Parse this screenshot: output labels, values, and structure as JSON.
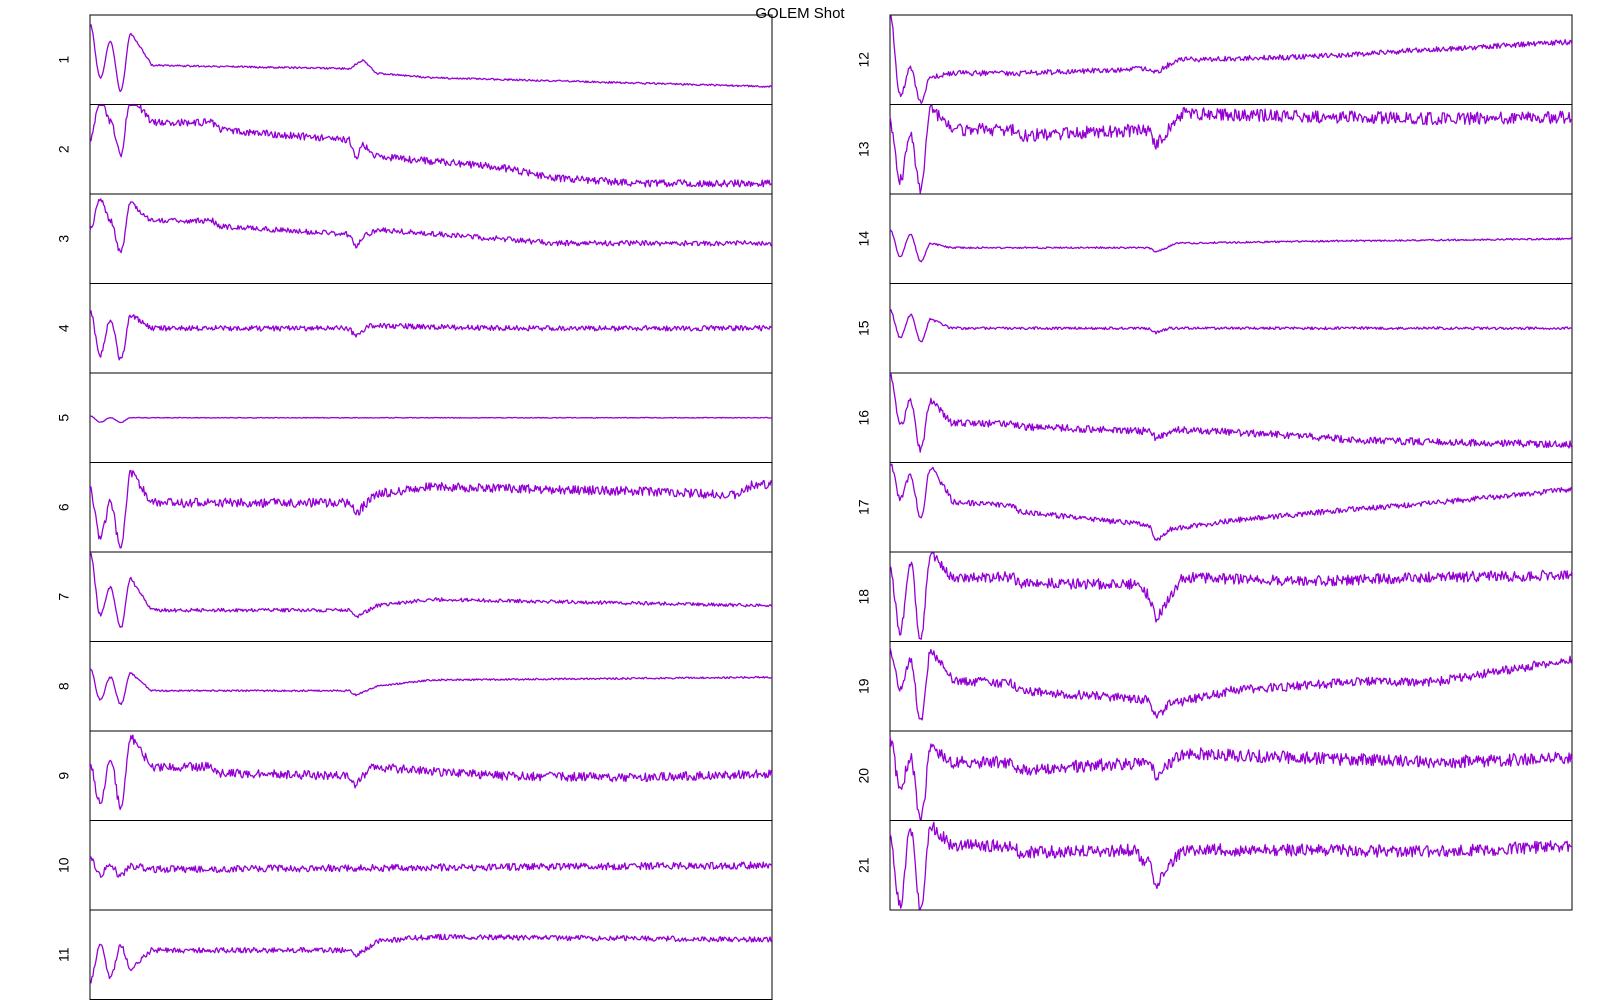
{
  "chart_data": {
    "type": "line",
    "title": "GOLEM Shot",
    "line_color": "#9400d3",
    "frame_color": "#000000",
    "background": "#ffffff",
    "grid": false,
    "legend": "none",
    "x_tick_labels": "none",
    "y_tick_labels": "none",
    "columns": [
      {
        "position": "left",
        "panels": [
          {
            "label": "1",
            "baseline": 0.55,
            "initial": [
              0.1,
              0.7,
              0.3,
              0.85,
              0.2
            ],
            "trend": [
              [
                0.0,
                0.0
              ],
              [
                0.38,
                0.05
              ],
              [
                0.4,
                -0.05
              ],
              [
                0.42,
                0.1
              ],
              [
                0.5,
                0.15
              ],
              [
                1.0,
                0.25
              ]
            ],
            "noise": 0.01
          },
          {
            "label": "2",
            "baseline": 0.2,
            "initial": [
              0.4,
              -0.05,
              0.2,
              0.55,
              -0.1
            ],
            "trend": [
              [
                0.0,
                0.0
              ],
              [
                0.18,
                0.0
              ],
              [
                0.19,
                0.08
              ],
              [
                0.38,
                0.2
              ],
              [
                0.39,
                0.4
              ],
              [
                0.4,
                0.25
              ],
              [
                0.42,
                0.38
              ],
              [
                0.6,
                0.5
              ],
              [
                0.68,
                0.62
              ],
              [
                0.8,
                0.68
              ],
              [
                1.0,
                0.68
              ]
            ],
            "noise": 0.04
          },
          {
            "label": "3",
            "baseline": 0.3,
            "initial": [
              0.4,
              0.05,
              0.3,
              0.65,
              0.1
            ],
            "trend": [
              [
                0.0,
                0.0
              ],
              [
                0.18,
                0.0
              ],
              [
                0.19,
                0.06
              ],
              [
                0.38,
                0.15
              ],
              [
                0.39,
                0.28
              ],
              [
                0.4,
                0.18
              ],
              [
                0.42,
                0.1
              ],
              [
                0.6,
                0.2
              ],
              [
                0.68,
                0.25
              ],
              [
                1.0,
                0.25
              ]
            ],
            "noise": 0.03
          },
          {
            "label": "4",
            "baseline": 0.5,
            "initial": [
              0.3,
              0.8,
              0.4,
              0.85,
              0.35
            ],
            "trend": [
              [
                0.0,
                0.0
              ],
              [
                0.38,
                0.0
              ],
              [
                0.39,
                0.1
              ],
              [
                0.41,
                -0.03
              ],
              [
                0.6,
                0.0
              ],
              [
                1.0,
                0.0
              ]
            ],
            "noise": 0.03
          },
          {
            "label": "5",
            "baseline": 0.5,
            "initial": [
              0.48,
              0.55,
              0.5,
              0.55,
              0.5
            ],
            "trend": [
              [
                0.0,
                0.0
              ],
              [
                1.0,
                0.0
              ]
            ],
            "noise": 0.004
          },
          {
            "label": "6",
            "baseline": 0.45,
            "initial": [
              0.3,
              0.85,
              0.45,
              0.95,
              0.1
            ],
            "trend": [
              [
                0.0,
                0.0
              ],
              [
                0.38,
                0.0
              ],
              [
                0.39,
                0.12
              ],
              [
                0.42,
                -0.1
              ],
              [
                0.5,
                -0.18
              ],
              [
                0.85,
                -0.12
              ],
              [
                0.95,
                -0.08
              ],
              [
                0.97,
                -0.2
              ],
              [
                1.0,
                -0.2
              ]
            ],
            "noise": 0.05
          },
          {
            "label": "7",
            "baseline": 0.65,
            "initial": [
              0.0,
              0.7,
              0.4,
              0.85,
              0.3
            ],
            "trend": [
              [
                0.0,
                0.0
              ],
              [
                0.38,
                0.0
              ],
              [
                0.39,
                0.08
              ],
              [
                0.42,
                -0.05
              ],
              [
                0.5,
                -0.12
              ],
              [
                1.0,
                -0.05
              ]
            ],
            "noise": 0.02
          },
          {
            "label": "8",
            "baseline": 0.55,
            "initial": [
              0.3,
              0.65,
              0.4,
              0.7,
              0.35
            ],
            "trend": [
              [
                0.0,
                0.0
              ],
              [
                0.38,
                0.0
              ],
              [
                0.39,
                0.05
              ],
              [
                0.42,
                -0.05
              ],
              [
                0.5,
                -0.12
              ],
              [
                1.0,
                -0.15
              ]
            ],
            "noise": 0.01
          },
          {
            "label": "9",
            "baseline": 0.4,
            "initial": [
              0.4,
              0.8,
              0.3,
              0.85,
              0.05
            ],
            "trend": [
              [
                0.0,
                0.0
              ],
              [
                0.18,
                0.0
              ],
              [
                0.19,
                0.07
              ],
              [
                0.38,
                0.1
              ],
              [
                0.39,
                0.22
              ],
              [
                0.41,
                0.0
              ],
              [
                0.6,
                0.1
              ],
              [
                0.8,
                0.12
              ],
              [
                1.0,
                0.08
              ]
            ],
            "noise": 0.05
          },
          {
            "label": "10",
            "baseline": 0.55,
            "initial": [
              0.4,
              0.6,
              0.5,
              0.62,
              0.5
            ],
            "trend": [
              [
                0.0,
                0.0
              ],
              [
                1.0,
                -0.05
              ]
            ],
            "noise": 0.04
          },
          {
            "label": "11",
            "baseline": 0.45,
            "initial": [
              0.8,
              0.4,
              0.75,
              0.4,
              0.65
            ],
            "trend": [
              [
                0.0,
                0.0
              ],
              [
                0.38,
                0.0
              ],
              [
                0.39,
                0.07
              ],
              [
                0.42,
                -0.1
              ],
              [
                0.5,
                -0.15
              ],
              [
                1.0,
                -0.12
              ]
            ],
            "noise": 0.03
          }
        ]
      },
      {
        "position": "right",
        "panels": [
          {
            "label": "12",
            "baseline": 0.65,
            "initial": [
              0.0,
              0.9,
              0.6,
              0.98,
              0.7
            ],
            "trend": [
              [
                0.0,
                0.0
              ],
              [
                0.18,
                0.0
              ],
              [
                0.19,
                0.0
              ],
              [
                0.38,
                -0.05
              ],
              [
                0.39,
                0.0
              ],
              [
                0.42,
                -0.15
              ],
              [
                0.6,
                -0.18
              ],
              [
                1.0,
                -0.35
              ]
            ],
            "noise": 0.03
          },
          {
            "label": "13",
            "baseline": 0.28,
            "initial": [
              0.2,
              0.85,
              0.3,
              0.98,
              0.05
            ],
            "trend": [
              [
                0.0,
                0.0
              ],
              [
                0.18,
                0.0
              ],
              [
                0.19,
                0.07
              ],
              [
                0.38,
                0.0
              ],
              [
                0.39,
                0.18
              ],
              [
                0.41,
                -0.02
              ],
              [
                0.43,
                -0.18
              ],
              [
                0.6,
                -0.15
              ],
              [
                0.8,
                -0.12
              ],
              [
                1.0,
                -0.14
              ]
            ],
            "noise": 0.07
          },
          {
            "label": "14",
            "baseline": 0.6,
            "initial": [
              0.4,
              0.7,
              0.45,
              0.75,
              0.55
            ],
            "trend": [
              [
                0.0,
                0.0
              ],
              [
                0.38,
                0.0
              ],
              [
                0.39,
                0.05
              ],
              [
                0.42,
                -0.05
              ],
              [
                0.6,
                -0.07
              ],
              [
                1.0,
                -0.1
              ]
            ],
            "noise": 0.01
          },
          {
            "label": "15",
            "baseline": 0.5,
            "initial": [
              0.3,
              0.6,
              0.35,
              0.65,
              0.4
            ],
            "trend": [
              [
                0.0,
                0.0
              ],
              [
                0.38,
                0.0
              ],
              [
                0.39,
                0.05
              ],
              [
                0.41,
                0.0
              ],
              [
                1.0,
                0.0
              ]
            ],
            "noise": 0.015
          },
          {
            "label": "16",
            "baseline": 0.55,
            "initial": [
              0.0,
              0.6,
              0.3,
              0.85,
              0.3
            ],
            "trend": [
              [
                0.0,
                0.0
              ],
              [
                0.18,
                0.02
              ],
              [
                0.19,
                0.05
              ],
              [
                0.38,
                0.1
              ],
              [
                0.39,
                0.18
              ],
              [
                0.42,
                0.08
              ],
              [
                0.6,
                0.15
              ],
              [
                0.68,
                0.2
              ],
              [
                1.0,
                0.25
              ]
            ],
            "noise": 0.04
          },
          {
            "label": "17",
            "baseline": 0.4,
            "initial": [
              0.0,
              0.4,
              0.15,
              0.6,
              0.05
            ],
            "trend": [
              [
                0.0,
                0.0
              ],
              [
                0.18,
                0.08
              ],
              [
                0.19,
                0.15
              ],
              [
                0.38,
                0.3
              ],
              [
                0.39,
                0.48
              ],
              [
                0.41,
                0.35
              ],
              [
                0.5,
                0.25
              ],
              [
                0.68,
                0.12
              ],
              [
                0.8,
                0.05
              ],
              [
                1.0,
                -0.1
              ]
            ],
            "noise": 0.03
          },
          {
            "label": "18",
            "baseline": 0.28,
            "initial": [
              0.2,
              0.9,
              0.1,
              0.98,
              0.0
            ],
            "trend": [
              [
                0.0,
                0.0
              ],
              [
                0.18,
                0.0
              ],
              [
                0.19,
                0.07
              ],
              [
                0.36,
                0.08
              ],
              [
                0.37,
                0.15
              ],
              [
                0.38,
                0.2
              ],
              [
                0.39,
                0.48
              ],
              [
                0.41,
                0.22
              ],
              [
                0.43,
                0.0
              ],
              [
                0.6,
                0.05
              ],
              [
                0.8,
                0.0
              ],
              [
                1.0,
                -0.02
              ]
            ],
            "noise": 0.06
          },
          {
            "label": "19",
            "baseline": 0.4,
            "initial": [
              0.1,
              0.55,
              0.2,
              0.9,
              0.1
            ],
            "trend": [
              [
                0.0,
                0.0
              ],
              [
                0.18,
                0.07
              ],
              [
                0.19,
                0.15
              ],
              [
                0.38,
                0.25
              ],
              [
                0.39,
                0.45
              ],
              [
                0.41,
                0.3
              ],
              [
                0.5,
                0.15
              ],
              [
                0.68,
                0.05
              ],
              [
                0.8,
                0.05
              ],
              [
                1.0,
                -0.2
              ]
            ],
            "noise": 0.05
          },
          {
            "label": "20",
            "baseline": 0.35,
            "initial": [
              0.1,
              0.65,
              0.3,
              1.0,
              0.2
            ],
            "trend": [
              [
                0.0,
                0.0
              ],
              [
                0.18,
                0.0
              ],
              [
                0.19,
                0.08
              ],
              [
                0.38,
                0.0
              ],
              [
                0.39,
                0.15
              ],
              [
                0.41,
                0.0
              ],
              [
                0.43,
                -0.1
              ],
              [
                0.6,
                -0.05
              ],
              [
                0.8,
                0.0
              ],
              [
                1.0,
                -0.05
              ]
            ],
            "noise": 0.07
          },
          {
            "label": "21",
            "baseline": 0.28,
            "initial": [
              0.2,
              0.95,
              0.1,
              0.98,
              0.05
            ],
            "trend": [
              [
                0.0,
                0.0
              ],
              [
                0.18,
                0.0
              ],
              [
                0.19,
                0.08
              ],
              [
                0.36,
                0.05
              ],
              [
                0.37,
                0.15
              ],
              [
                0.38,
                0.2
              ],
              [
                0.39,
                0.45
              ],
              [
                0.41,
                0.2
              ],
              [
                0.43,
                0.05
              ],
              [
                0.6,
                0.05
              ],
              [
                0.8,
                0.07
              ],
              [
                1.0,
                0.0
              ]
            ],
            "noise": 0.07
          }
        ]
      }
    ]
  }
}
